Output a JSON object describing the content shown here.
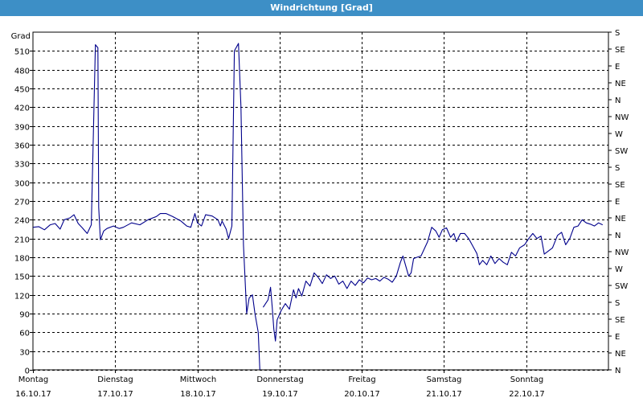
{
  "window": {
    "title": "Windrichtung [Grad]"
  },
  "chart_data": {
    "type": "line",
    "title": "Windrichtung [Grad]",
    "ylabel": "Grad",
    "ylim": [
      0,
      540
    ],
    "yticks": [
      0,
      30,
      60,
      90,
      120,
      150,
      180,
      210,
      240,
      270,
      300,
      330,
      360,
      390,
      420,
      450,
      480,
      510
    ],
    "right_axis_labels": [
      "N",
      "NE",
      "E",
      "SE",
      "S",
      "SW",
      "W",
      "NW",
      "N",
      "NE",
      "E",
      "SE",
      "S",
      "SW",
      "W",
      "NW",
      "N",
      "NE",
      "E",
      "SE",
      "S"
    ],
    "xlim": [
      0,
      7
    ],
    "x_ticks": [
      {
        "day": "Montag",
        "date": "16.10.17"
      },
      {
        "day": "Dienstag",
        "date": "17.10.17"
      },
      {
        "day": "Mittwoch",
        "date": "18.10.17"
      },
      {
        "day": "Donnerstag",
        "date": "19.10.17"
      },
      {
        "day": "Freitag",
        "date": "20.10.17"
      },
      {
        "day": "Samstag",
        "date": "21.10.17"
      },
      {
        "day": "Sonntag",
        "date": "22.10.17"
      }
    ],
    "grid": true,
    "line_color": "#00008b",
    "series": [
      {
        "segments": [
          [
            [
              0.0,
              228
            ],
            [
              0.07,
              229
            ],
            [
              0.14,
              224
            ],
            [
              0.21,
              232
            ],
            [
              0.27,
              234
            ],
            [
              0.33,
              225
            ],
            [
              0.38,
              240
            ],
            [
              0.45,
              243
            ],
            [
              0.5,
              248
            ],
            [
              0.55,
              234
            ],
            [
              0.6,
              227
            ],
            [
              0.66,
              218
            ],
            [
              0.71,
              232
            ],
            [
              0.76,
              520
            ],
            [
              0.79,
              515
            ],
            [
              0.8,
              260
            ],
            [
              0.82,
              208
            ],
            [
              0.86,
              222
            ],
            [
              0.9,
              226
            ],
            [
              0.98,
              230
            ],
            [
              1.05,
              226
            ],
            [
              1.1,
              228
            ],
            [
              1.2,
              235
            ],
            [
              1.3,
              232
            ],
            [
              1.4,
              240
            ],
            [
              1.5,
              245
            ],
            [
              1.55,
              250
            ],
            [
              1.62,
              250
            ],
            [
              1.7,
              245
            ],
            [
              1.8,
              238
            ],
            [
              1.87,
              230
            ],
            [
              1.92,
              228
            ],
            [
              1.97,
              250
            ],
            [
              2.0,
              235
            ],
            [
              2.05,
              230
            ],
            [
              2.1,
              248
            ],
            [
              2.18,
              246
            ],
            [
              2.25,
              240
            ],
            [
              2.28,
              230
            ],
            [
              2.3,
              238
            ],
            [
              2.35,
              225
            ],
            [
              2.38,
              210
            ],
            [
              2.42,
              230
            ],
            [
              2.45,
              510
            ],
            [
              2.5,
              522
            ],
            [
              2.53,
              420
            ],
            [
              2.56,
              200
            ],
            [
              2.6,
              90
            ],
            [
              2.63,
              115
            ],
            [
              2.67,
              120
            ],
            [
              2.7,
              90
            ],
            [
              2.74,
              60
            ],
            [
              2.76,
              0
            ]
          ],
          [
            [
              2.8,
              100
            ],
            [
              2.86,
              112
            ],
            [
              2.89,
              132
            ],
            [
              2.91,
              100
            ],
            [
              2.93,
              65
            ],
            [
              2.95,
              46
            ],
            [
              2.97,
              80
            ],
            [
              3.02,
              95
            ],
            [
              3.07,
              106
            ],
            [
              3.12,
              97
            ],
            [
              3.17,
              128
            ],
            [
              3.2,
              115
            ],
            [
              3.23,
              130
            ],
            [
              3.27,
              118
            ],
            [
              3.32,
              142
            ],
            [
              3.37,
              134
            ],
            [
              3.42,
              155
            ],
            [
              3.47,
              148
            ],
            [
              3.52,
              138
            ],
            [
              3.57,
              152
            ],
            [
              3.62,
              146
            ],
            [
              3.67,
              150
            ],
            [
              3.72,
              137
            ],
            [
              3.77,
              142
            ],
            [
              3.82,
              130
            ],
            [
              3.87,
              142
            ],
            [
              3.92,
              135
            ],
            [
              3.97,
              144
            ],
            [
              4.02,
              139
            ],
            [
              4.07,
              147
            ],
            [
              4.12,
              144
            ],
            [
              4.17,
              146
            ],
            [
              4.22,
              142
            ],
            [
              4.27,
              148
            ],
            [
              4.32,
              145
            ],
            [
              4.37,
              140
            ],
            [
              4.42,
              150
            ],
            [
              4.47,
              172
            ],
            [
              4.5,
              182
            ],
            [
              4.53,
              168
            ],
            [
              4.57,
              150
            ],
            [
              4.6,
              155
            ],
            [
              4.63,
              178
            ],
            [
              4.67,
              180
            ],
            [
              4.72,
              182
            ],
            [
              4.8,
              205
            ],
            [
              4.85,
              228
            ],
            [
              4.9,
              222
            ],
            [
              4.94,
              212
            ],
            [
              4.98,
              224
            ],
            [
              5.03,
              227
            ],
            [
              5.08,
              212
            ],
            [
              5.12,
              218
            ],
            [
              5.15,
              205
            ],
            [
              5.2,
              218
            ],
            [
              5.25,
              218
            ],
            [
              5.3,
              210
            ],
            [
              5.35,
              198
            ],
            [
              5.4,
              186
            ],
            [
              5.43,
              168
            ],
            [
              5.47,
              175
            ],
            [
              5.52,
              168
            ],
            [
              5.57,
              182
            ],
            [
              5.62,
              170
            ],
            [
              5.67,
              178
            ],
            [
              5.72,
              172
            ],
            [
              5.77,
              168
            ],
            [
              5.82,
              188
            ],
            [
              5.87,
              182
            ],
            [
              5.92,
              195
            ],
            [
              5.98,
              200
            ],
            [
              6.03,
              210
            ],
            [
              6.08,
              218
            ],
            [
              6.13,
              210
            ],
            [
              6.18,
              214
            ],
            [
              6.22,
              185
            ],
            [
              6.27,
              190
            ],
            [
              6.32,
              195
            ],
            [
              6.38,
              215
            ],
            [
              6.43,
              220
            ],
            [
              6.48,
              200
            ],
            [
              6.53,
              210
            ],
            [
              6.58,
              228
            ],
            [
              6.63,
              230
            ],
            [
              6.68,
              240
            ],
            [
              6.73,
              235
            ],
            [
              6.78,
              233
            ],
            [
              6.83,
              230
            ],
            [
              6.88,
              235
            ],
            [
              6.93,
              232
            ]
          ]
        ]
      }
    ]
  }
}
